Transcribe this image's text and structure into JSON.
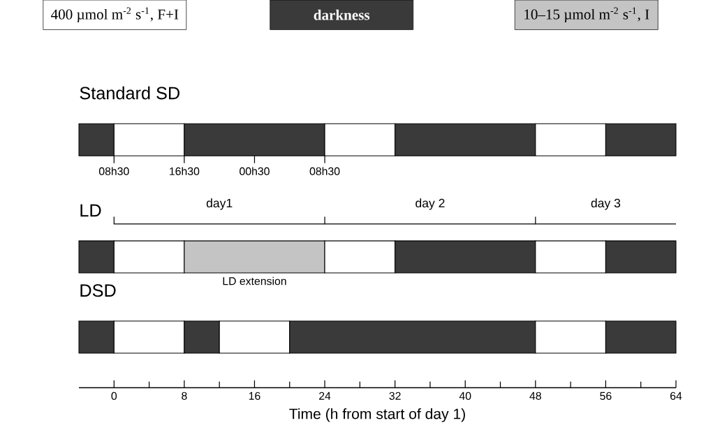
{
  "chart_data": {
    "type": "bar",
    "orientation": "horizontal",
    "stacked": true,
    "categories": [
      "Standard SD",
      "LD",
      "DSD"
    ],
    "series": [
      {
        "colors": [
          "#3a3a3a",
          "#3a3a3a",
          "#3a3a3a"
        ],
        "values": [
          -4,
          -4,
          -4
        ]
      },
      {
        "colors": [
          "#ffffff",
          "#ffffff",
          "#ffffff"
        ],
        "values": [
          8,
          8,
          8
        ]
      },
      {
        "colors": [
          "#3a3a3a",
          "#c4c4c4",
          "#3a3a3a"
        ],
        "values": [
          16,
          16,
          4
        ]
      },
      {
        "colors": [
          "#ffffff",
          "#ffffff",
          "#ffffff"
        ],
        "values": [
          8,
          8,
          8
        ]
      },
      {
        "colors": [
          "#3a3a3a",
          "#3a3a3a",
          "#3a3a3a"
        ],
        "values": [
          16,
          16,
          28
        ]
      },
      {
        "colors": [
          "#ffffff",
          "#ffffff",
          "#ffffff"
        ],
        "values": [
          8,
          8,
          8
        ]
      },
      {
        "colors": [
          "#3a3a3a",
          "#3a3a3a",
          "#3a3a3a"
        ],
        "values": [
          8,
          8,
          8
        ]
      }
    ],
    "xlabel": "Time (h from start of day 1)",
    "xlim": [
      -4,
      64
    ],
    "xticks": [
      0,
      8,
      16,
      24,
      32,
      40,
      48,
      56,
      64
    ],
    "annotations": [
      "400 µmol m$^{-2}$ s$^{-1}$, F+I",
      "**darkness**",
      "10–15 µmol m$^{-2}$ s$^{-1}$, I",
      {
        "text": "08h30",
        "x": 0,
        "y": "Standard SD"
      },
      {
        "text": "16h30",
        "x": 8,
        "y": "Standard SD"
      },
      "00h30",
      {
        "text": "08h30",
        "x": 24,
        "y": "Standard SD"
      },
      "LD extension",
      "day1",
      "day 2",
      "day 3"
    ]
  }
}
